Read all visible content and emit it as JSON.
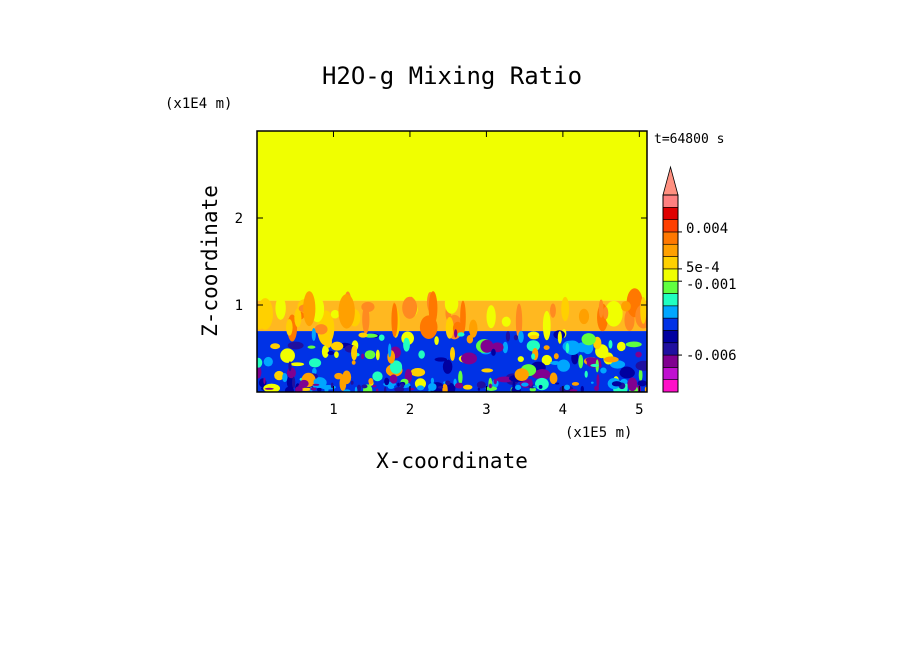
{
  "chart_data": {
    "type": "heatmap",
    "title": "H2O-g Mixing Ratio",
    "xlabel": "X-coordinate",
    "ylabel": "Z-coordinate",
    "x_unit": "(x1E5 m)",
    "y_unit": "(x1E4 m)",
    "annotation": "t=64800 s",
    "xlim": [
      0,
      5.1
    ],
    "ylim": [
      0,
      3
    ],
    "x_ticks": [
      1,
      2,
      3,
      4,
      5
    ],
    "y_ticks": [
      1,
      2
    ],
    "field_regions": [
      {
        "name": "upper",
        "z_range": [
          1.05,
          3.0
        ],
        "color": "#f0ff00"
      },
      {
        "name": "plume band",
        "z_range": [
          0.7,
          1.05
        ],
        "color": "#ffb820"
      },
      {
        "name": "lower",
        "z_range": [
          0.0,
          0.7
        ],
        "color": "#0032e6"
      }
    ],
    "colorbar": {
      "extend": "max",
      "segments": [
        {
          "color": "#ff10c8"
        },
        {
          "color": "#c010d0"
        },
        {
          "color": "#800090"
        },
        {
          "color": "#2010a0"
        },
        {
          "color": "#0000a0"
        },
        {
          "color": "#0032e6"
        },
        {
          "color": "#00a6ff"
        },
        {
          "color": "#20ffc0"
        },
        {
          "color": "#60ff40"
        },
        {
          "color": "#f0ff00"
        },
        {
          "color": "#ffd000"
        },
        {
          "color": "#ffa000"
        },
        {
          "color": "#ff7800"
        },
        {
          "color": "#ff4000"
        },
        {
          "color": "#e00000"
        },
        {
          "color": "#ff8080"
        }
      ],
      "arrow_color": "#ff9080",
      "labels": [
        "0.004",
        "5e-4",
        "-0.001",
        "-0.006"
      ]
    }
  }
}
